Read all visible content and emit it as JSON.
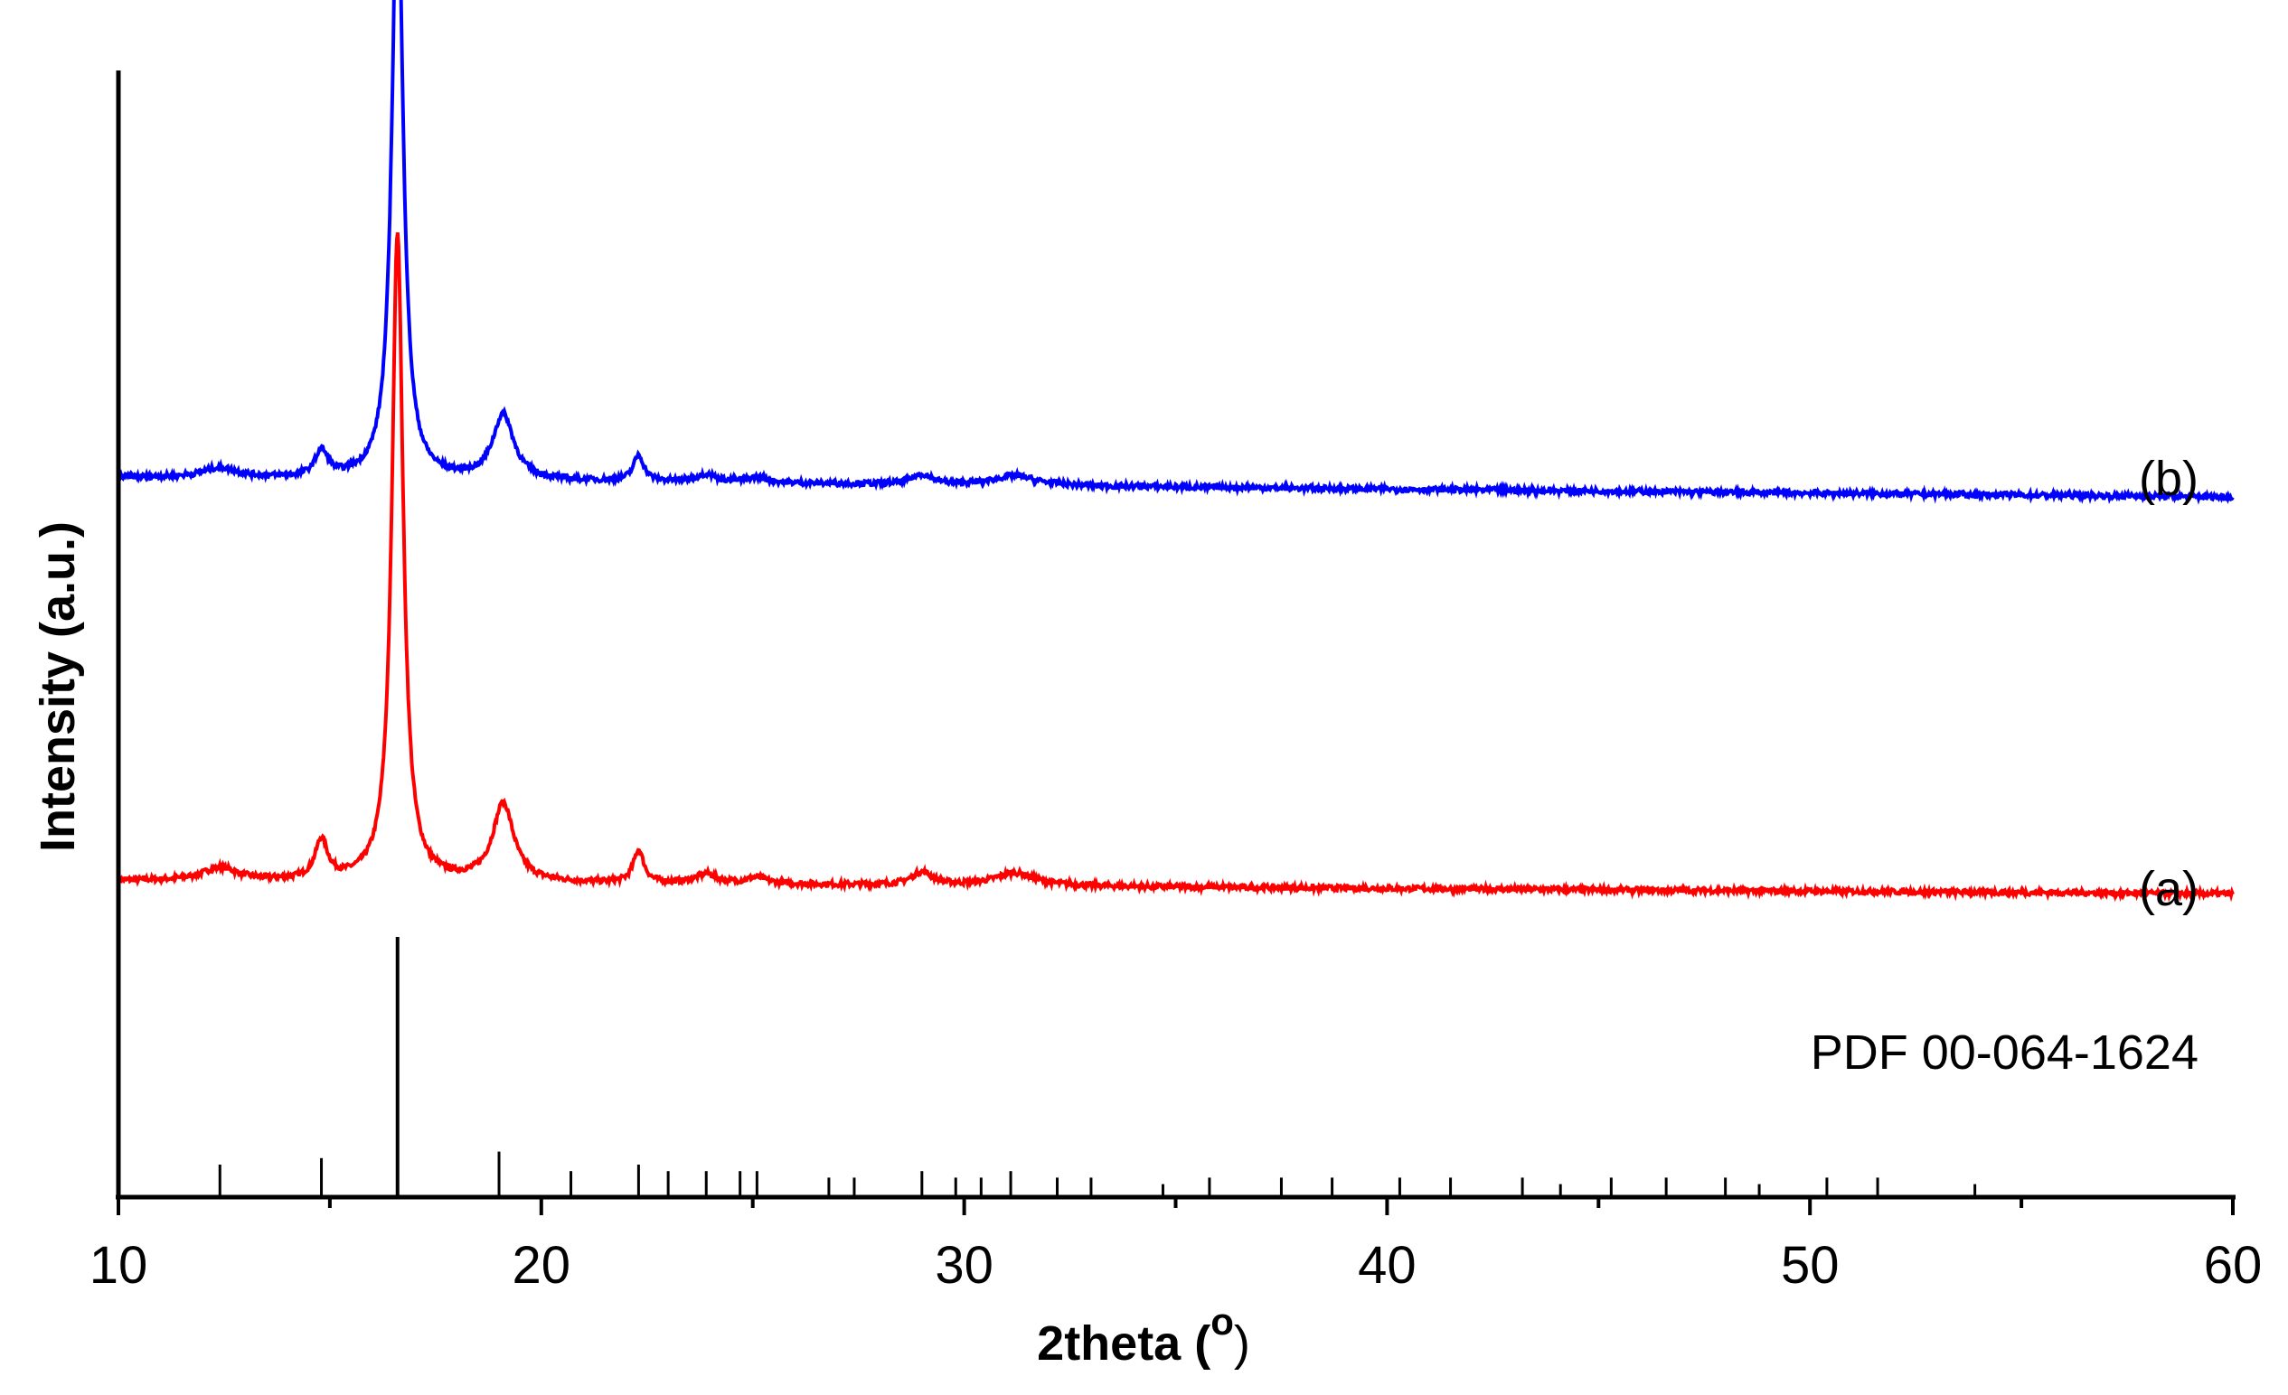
{
  "chart_data": {
    "type": "line",
    "xlabel": "2theta (",
    "xlabel_sup": "o",
    "xlabel_close": ")",
    "ylabel": "Intensity (a.u.)",
    "xlim": [
      10,
      60
    ],
    "xticks": [
      10,
      20,
      30,
      40,
      50,
      60
    ],
    "tick_labels": [
      "10",
      "20",
      "30",
      "40",
      "50",
      "60"
    ],
    "grid": false,
    "series": [
      {
        "name": "(a)",
        "color": "#ff0000",
        "baseline_start": 0.41,
        "baseline_end": 0.39,
        "peaks": [
          {
            "x": 12.4,
            "h": 0.02,
            "w": 0.5
          },
          {
            "x": 14.8,
            "h": 0.06,
            "w": 0.18
          },
          {
            "x": 16.6,
            "h": 1.0,
            "w": 0.16
          },
          {
            "x": 19.1,
            "h": 0.12,
            "w": 0.3
          },
          {
            "x": 22.3,
            "h": 0.05,
            "w": 0.15
          },
          {
            "x": 23.9,
            "h": 0.015,
            "w": 0.3
          },
          {
            "x": 25.1,
            "h": 0.01,
            "w": 0.3
          },
          {
            "x": 29.0,
            "h": 0.02,
            "w": 0.3
          },
          {
            "x": 31.2,
            "h": 0.02,
            "w": 0.6
          }
        ]
      },
      {
        "name": "(b)",
        "color": "#0000ff",
        "baseline_start": 1.03,
        "baseline_end": 1.0,
        "peaks": [
          {
            "x": 12.4,
            "h": 0.015,
            "w": 0.5
          },
          {
            "x": 14.8,
            "h": 0.04,
            "w": 0.18
          },
          {
            "x": 16.6,
            "h": 0.94,
            "w": 0.16
          },
          {
            "x": 19.1,
            "h": 0.1,
            "w": 0.3
          },
          {
            "x": 22.3,
            "h": 0.04,
            "w": 0.15
          },
          {
            "x": 23.9,
            "h": 0.012,
            "w": 0.3
          },
          {
            "x": 25.1,
            "h": 0.008,
            "w": 0.3
          },
          {
            "x": 29.0,
            "h": 0.015,
            "w": 0.3
          },
          {
            "x": 31.2,
            "h": 0.015,
            "w": 0.6
          }
        ]
      }
    ],
    "reference": {
      "name": "PDF 00-064-1624",
      "lines": [
        {
          "x": 12.4,
          "h": 0.05
        },
        {
          "x": 14.8,
          "h": 0.06
        },
        {
          "x": 16.6,
          "h": 0.4
        },
        {
          "x": 19.0,
          "h": 0.07
        },
        {
          "x": 20.7,
          "h": 0.04
        },
        {
          "x": 22.3,
          "h": 0.05
        },
        {
          "x": 23.0,
          "h": 0.04
        },
        {
          "x": 23.9,
          "h": 0.04
        },
        {
          "x": 24.7,
          "h": 0.04
        },
        {
          "x": 25.1,
          "h": 0.04
        },
        {
          "x": 26.8,
          "h": 0.03
        },
        {
          "x": 27.4,
          "h": 0.03
        },
        {
          "x": 29.0,
          "h": 0.04
        },
        {
          "x": 29.8,
          "h": 0.03
        },
        {
          "x": 30.4,
          "h": 0.03
        },
        {
          "x": 31.1,
          "h": 0.04
        },
        {
          "x": 32.2,
          "h": 0.03
        },
        {
          "x": 33.0,
          "h": 0.03
        },
        {
          "x": 34.7,
          "h": 0.02
        },
        {
          "x": 35.8,
          "h": 0.03
        },
        {
          "x": 37.5,
          "h": 0.03
        },
        {
          "x": 38.7,
          "h": 0.03
        },
        {
          "x": 40.3,
          "h": 0.03
        },
        {
          "x": 41.5,
          "h": 0.03
        },
        {
          "x": 43.2,
          "h": 0.03
        },
        {
          "x": 44.1,
          "h": 0.02
        },
        {
          "x": 45.3,
          "h": 0.03
        },
        {
          "x": 46.6,
          "h": 0.03
        },
        {
          "x": 48.0,
          "h": 0.03
        },
        {
          "x": 48.8,
          "h": 0.02
        },
        {
          "x": 50.4,
          "h": 0.03
        },
        {
          "x": 51.6,
          "h": 0.03
        },
        {
          "x": 53.9,
          "h": 0.02
        }
      ]
    }
  }
}
